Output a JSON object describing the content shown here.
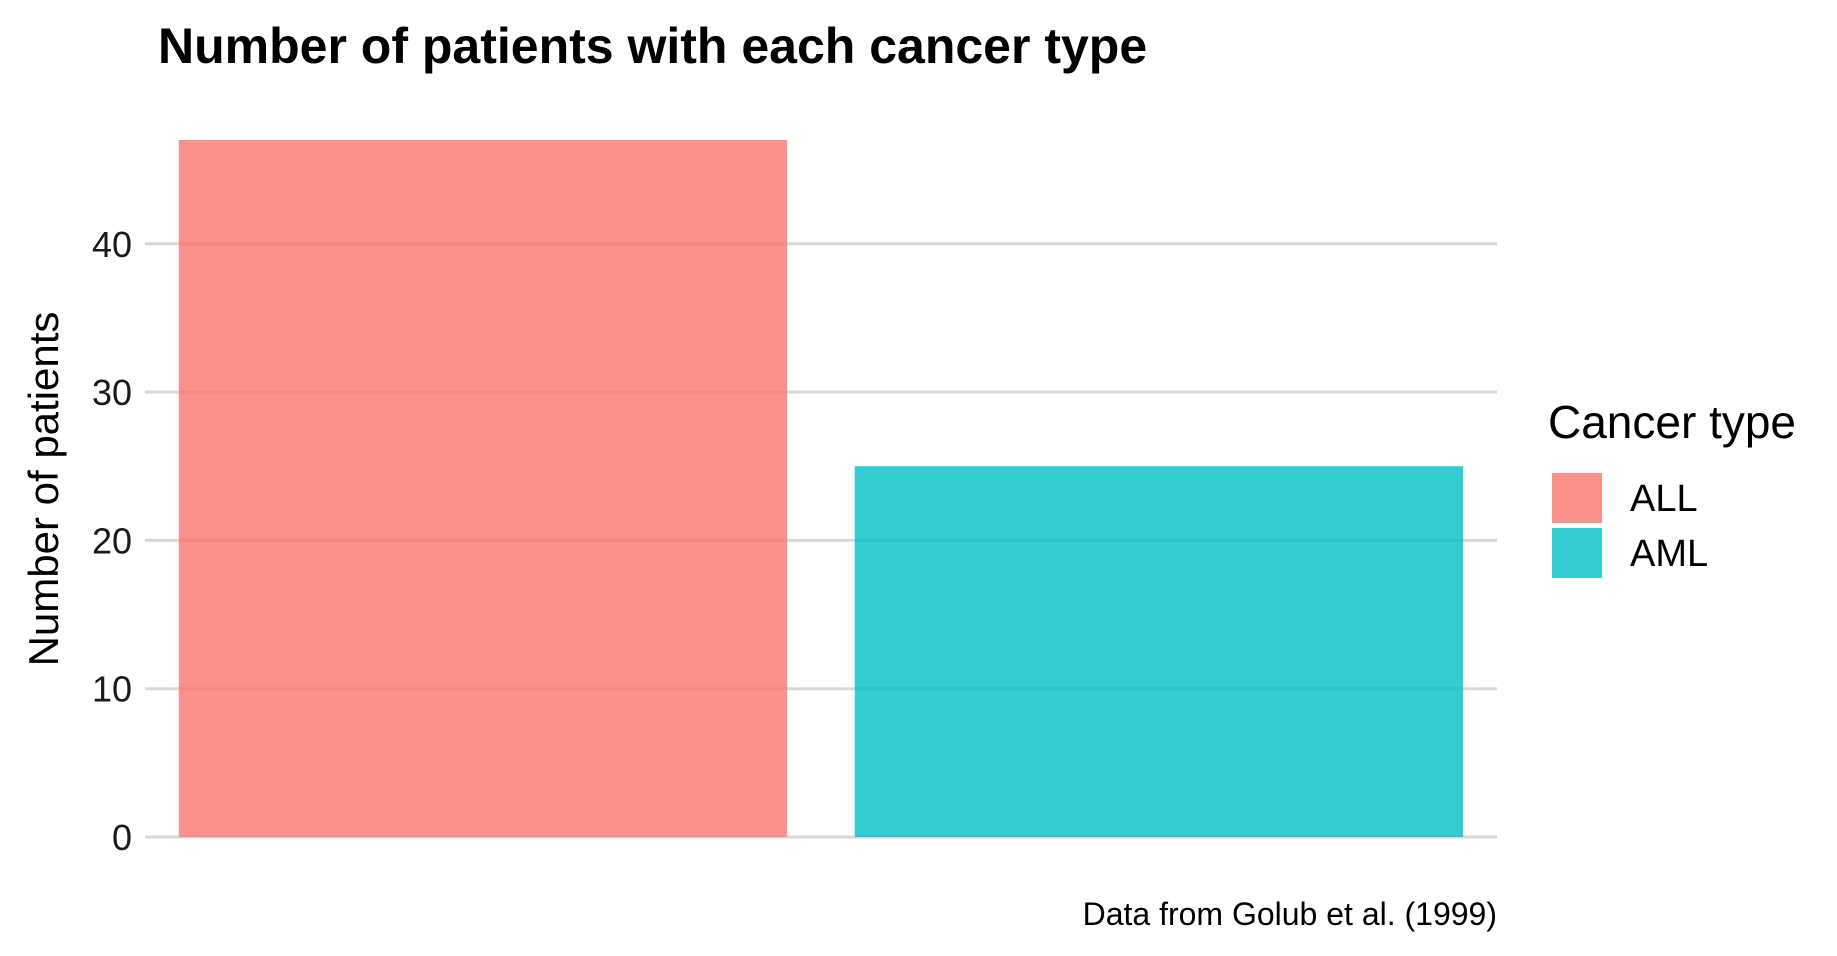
{
  "chart_data": {
    "type": "bar",
    "title": "Number of patients with each cancer type",
    "xlabel": "",
    "ylabel": "Number of patients",
    "categories": [
      "ALL",
      "AML"
    ],
    "values": [
      47,
      25
    ],
    "colors": [
      "#F8766D",
      "#00BFC4"
    ],
    "bar_opacity": 0.8,
    "ylim": [
      0,
      47
    ],
    "yticks": [
      0,
      10,
      20,
      30,
      40
    ],
    "grid": true,
    "legend": {
      "title": "Cancer type",
      "position": "right",
      "entries": [
        "ALL",
        "AML"
      ]
    },
    "caption": "Data from Golub et al. (1999)"
  }
}
